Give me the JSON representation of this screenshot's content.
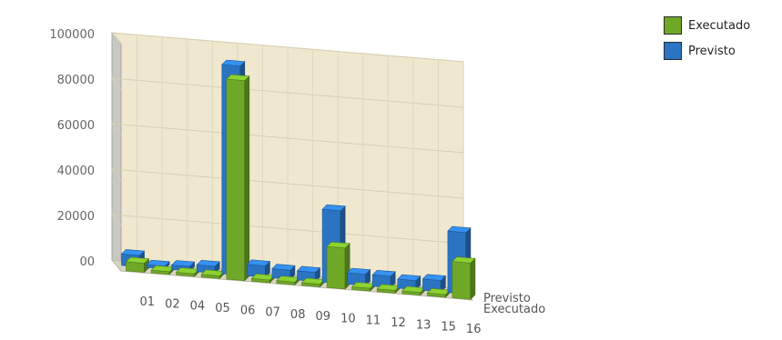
{
  "chart_data": {
    "type": "bar",
    "style": "3d-clustered",
    "categories": [
      "01",
      "02",
      "04",
      "05",
      "06",
      "07",
      "08",
      "09",
      "10",
      "11",
      "12",
      "13",
      "15",
      "16"
    ],
    "series": [
      {
        "name": "Executado",
        "color": "#6fa827",
        "values": [
          4000,
          0,
          0,
          0,
          88000,
          0,
          0,
          0,
          18000,
          0,
          0,
          0,
          0,
          16000
        ]
      },
      {
        "name": "Previsto",
        "color": "#2a74c2",
        "values": [
          5000,
          1000,
          2000,
          3000,
          92000,
          5000,
          4000,
          4000,
          32000,
          5000,
          5000,
          4000,
          5000,
          27000
        ]
      }
    ],
    "y_ticks": [
      "00",
      "20000",
      "40000",
      "60000",
      "80000",
      "100000"
    ],
    "ylim": [
      0,
      100000
    ],
    "depth_labels": [
      "Previsto",
      "Executado"
    ],
    "grid": true,
    "legend_position": "top-right",
    "background_color": "#efe8cf"
  }
}
